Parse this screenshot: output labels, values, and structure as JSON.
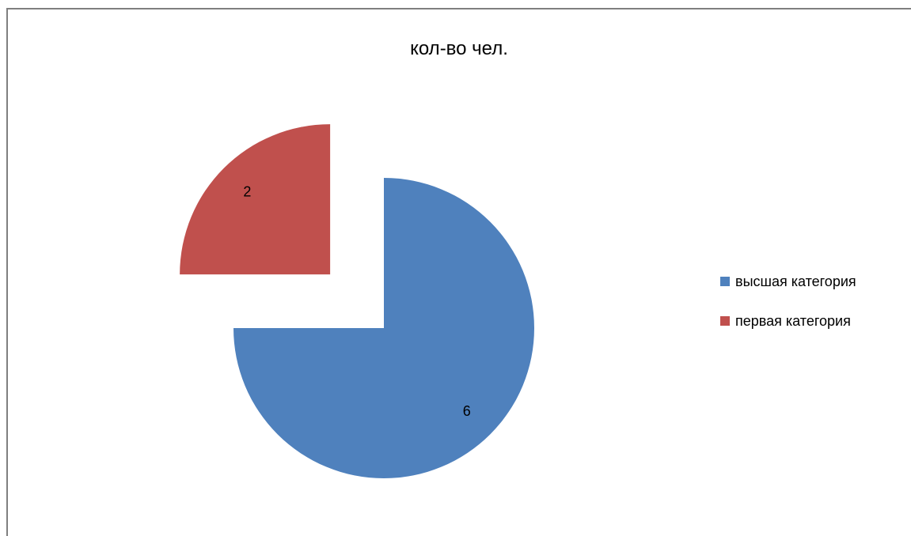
{
  "chart_data": {
    "type": "pie",
    "title": "кол-во чел.",
    "categories": [
      "высшая категория",
      "первая категория"
    ],
    "values": [
      6,
      2
    ],
    "colors": [
      "#4f81bd",
      "#c0504d"
    ],
    "exploded": [
      false,
      true
    ],
    "start_angle_deg": 0,
    "direction": "clockwise",
    "legend_position": "right",
    "show_data_labels": true
  }
}
